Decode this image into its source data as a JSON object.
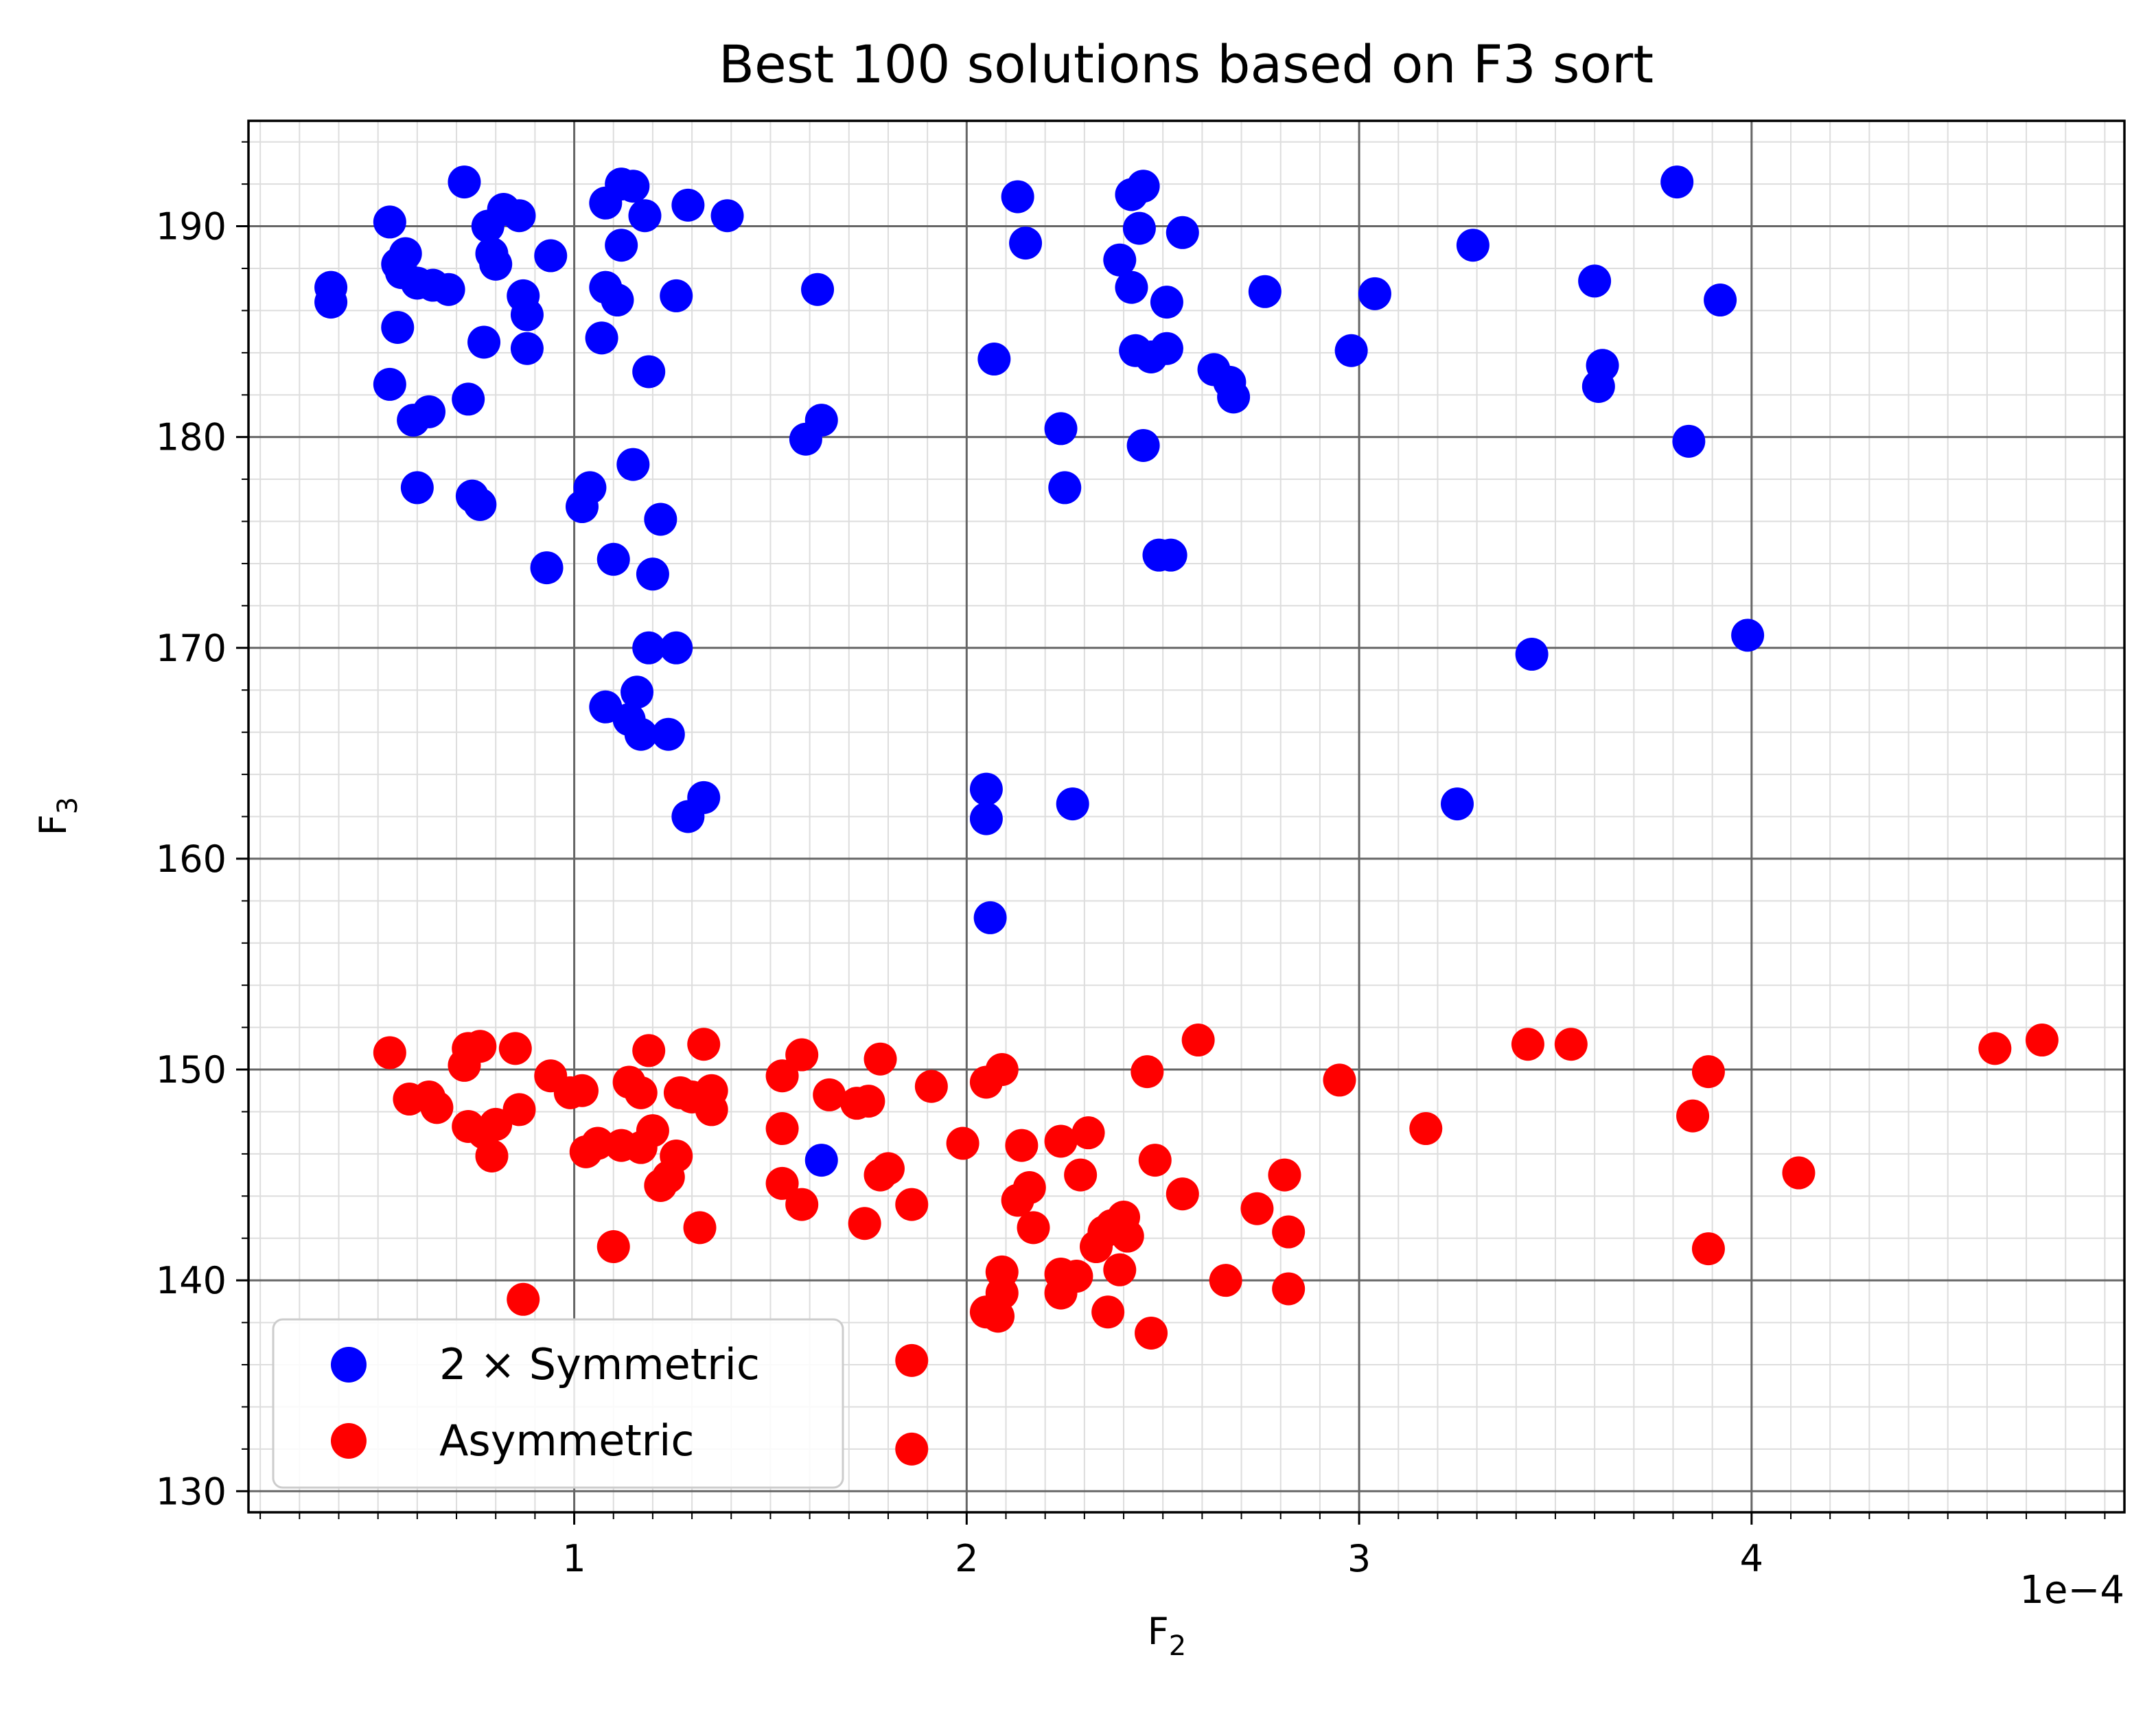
{
  "chart_data": {
    "type": "scatter",
    "title": "Best 100 solutions based on F3 sort",
    "xlabel": "F",
    "xlabel_sub": "2",
    "ylabel": "F",
    "ylabel_sub": "3",
    "x_offset_label": "1e−4",
    "xlim": [
      0.17,
      4.95
    ],
    "ylim": [
      129.0,
      195.0
    ],
    "xticks": [
      1,
      2,
      3,
      4
    ],
    "xtick_labels": [
      "1",
      "2",
      "3",
      "4"
    ],
    "yticks": [
      130,
      140,
      150,
      160,
      170,
      180,
      190
    ],
    "ytick_labels": [
      "130",
      "140",
      "150",
      "160",
      "170",
      "180",
      "190"
    ],
    "grid": true,
    "legend": "lower-left",
    "series": [
      {
        "name": "2 × Symmetric",
        "color": "#0000ff",
        "points": [
          [
            0.38,
            187.1
          ],
          [
            0.38,
            186.4
          ],
          [
            0.53,
            190.2
          ],
          [
            0.55,
            188.2
          ],
          [
            0.57,
            188.7
          ],
          [
            0.56,
            187.8
          ],
          [
            0.55,
            185.2
          ],
          [
            0.53,
            182.5
          ],
          [
            0.6,
            187.3
          ],
          [
            0.64,
            187.2
          ],
          [
            0.68,
            187.0
          ],
          [
            0.59,
            180.8
          ],
          [
            0.63,
            181.2
          ],
          [
            0.6,
            177.6
          ],
          [
            0.72,
            192.1
          ],
          [
            0.73,
            181.8
          ],
          [
            0.78,
            190.0
          ],
          [
            0.79,
            188.7
          ],
          [
            0.8,
            188.2
          ],
          [
            0.82,
            190.8
          ],
          [
            0.86,
            190.5
          ],
          [
            0.87,
            186.7
          ],
          [
            0.88,
            185.8
          ],
          [
            0.88,
            184.2
          ],
          [
            0.77,
            184.5
          ],
          [
            0.74,
            177.2
          ],
          [
            0.76,
            176.8
          ],
          [
            0.94,
            188.6
          ],
          [
            0.93,
            173.8
          ],
          [
            1.04,
            177.6
          ],
          [
            1.02,
            176.7
          ],
          [
            1.08,
            191.1
          ],
          [
            1.12,
            192.0
          ],
          [
            1.15,
            191.9
          ],
          [
            1.18,
            190.5
          ],
          [
            1.12,
            189.1
          ],
          [
            1.08,
            187.1
          ],
          [
            1.11,
            186.5
          ],
          [
            1.07,
            184.7
          ],
          [
            1.19,
            183.1
          ],
          [
            1.15,
            178.7
          ],
          [
            1.22,
            176.1
          ],
          [
            1.2,
            173.5
          ],
          [
            1.1,
            174.2
          ],
          [
            1.19,
            170.0
          ],
          [
            1.26,
            170.0
          ],
          [
            1.08,
            167.2
          ],
          [
            1.16,
            167.9
          ],
          [
            1.14,
            166.6
          ],
          [
            1.17,
            165.9
          ],
          [
            1.24,
            165.9
          ],
          [
            1.29,
            162.0
          ],
          [
            1.33,
            162.9
          ],
          [
            1.29,
            191.0
          ],
          [
            1.39,
            190.5
          ],
          [
            1.26,
            186.7
          ],
          [
            1.62,
            187.0
          ],
          [
            1.63,
            180.8
          ],
          [
            1.59,
            179.9
          ],
          [
            2.05,
            163.3
          ],
          [
            2.05,
            161.9
          ],
          [
            2.06,
            157.2
          ],
          [
            2.13,
            191.4
          ],
          [
            2.15,
            189.2
          ],
          [
            2.07,
            183.7
          ],
          [
            2.24,
            180.4
          ],
          [
            2.25,
            177.6
          ],
          [
            2.27,
            162.6
          ],
          [
            2.42,
            191.5
          ],
          [
            2.45,
            191.9
          ],
          [
            2.44,
            189.9
          ],
          [
            2.39,
            188.4
          ],
          [
            2.42,
            187.1
          ],
          [
            2.43,
            184.1
          ],
          [
            2.47,
            183.8
          ],
          [
            2.51,
            184.2
          ],
          [
            2.55,
            189.7
          ],
          [
            2.51,
            186.4
          ],
          [
            2.45,
            179.6
          ],
          [
            2.49,
            174.4
          ],
          [
            2.52,
            174.4
          ],
          [
            2.63,
            183.2
          ],
          [
            2.67,
            182.6
          ],
          [
            2.68,
            181.9
          ],
          [
            2.76,
            186.9
          ],
          [
            2.98,
            184.1
          ],
          [
            3.04,
            186.8
          ],
          [
            3.29,
            189.1
          ],
          [
            3.25,
            162.6
          ],
          [
            3.44,
            169.7
          ],
          [
            3.6,
            187.4
          ],
          [
            3.61,
            182.4
          ],
          [
            3.62,
            183.4
          ],
          [
            3.81,
            192.1
          ],
          [
            3.84,
            179.8
          ],
          [
            3.92,
            186.5
          ],
          [
            3.99,
            170.6
          ],
          [
            1.63,
            145.7
          ]
        ]
      },
      {
        "name": "Asymmetric",
        "color": "#ff0000",
        "points": [
          [
            0.53,
            150.8
          ],
          [
            0.58,
            148.6
          ],
          [
            0.63,
            148.7
          ],
          [
            0.65,
            148.2
          ],
          [
            0.72,
            150.2
          ],
          [
            0.73,
            151.0
          ],
          [
            0.76,
            151.1
          ],
          [
            0.73,
            147.3
          ],
          [
            0.77,
            147.0
          ],
          [
            0.8,
            147.4
          ],
          [
            0.79,
            145.9
          ],
          [
            0.85,
            151.0
          ],
          [
            0.86,
            148.1
          ],
          [
            0.87,
            139.1
          ],
          [
            0.94,
            149.7
          ],
          [
            0.99,
            148.9
          ],
          [
            1.02,
            149.0
          ],
          [
            1.03,
            146.1
          ],
          [
            1.06,
            146.5
          ],
          [
            1.1,
            141.6
          ],
          [
            1.12,
            146.4
          ],
          [
            1.14,
            149.4
          ],
          [
            1.17,
            148.9
          ],
          [
            1.17,
            146.3
          ],
          [
            1.19,
            150.9
          ],
          [
            1.2,
            147.1
          ],
          [
            1.22,
            144.5
          ],
          [
            1.24,
            144.9
          ],
          [
            1.26,
            145.9
          ],
          [
            1.27,
            148.9
          ],
          [
            1.3,
            148.7
          ],
          [
            1.33,
            151.2
          ],
          [
            1.35,
            149.0
          ],
          [
            1.35,
            148.1
          ],
          [
            1.32,
            142.5
          ],
          [
            1.53,
            149.7
          ],
          [
            1.53,
            147.2
          ],
          [
            1.53,
            144.6
          ],
          [
            1.58,
            150.7
          ],
          [
            1.58,
            143.6
          ],
          [
            1.65,
            148.8
          ],
          [
            1.72,
            148.4
          ],
          [
            1.75,
            148.5
          ],
          [
            1.74,
            142.7
          ],
          [
            1.78,
            150.5
          ],
          [
            1.78,
            145.0
          ],
          [
            1.8,
            145.3
          ],
          [
            1.86,
            143.6
          ],
          [
            1.86,
            136.2
          ],
          [
            1.86,
            132.0
          ],
          [
            1.91,
            149.2
          ],
          [
            1.99,
            146.5
          ],
          [
            2.05,
            149.4
          ],
          [
            2.09,
            150.0
          ],
          [
            2.05,
            138.5
          ],
          [
            2.09,
            140.4
          ],
          [
            2.09,
            139.4
          ],
          [
            2.08,
            138.3
          ],
          [
            2.14,
            146.4
          ],
          [
            2.13,
            143.8
          ],
          [
            2.16,
            144.4
          ],
          [
            2.17,
            142.5
          ],
          [
            2.24,
            146.6
          ],
          [
            2.24,
            140.3
          ],
          [
            2.24,
            139.4
          ],
          [
            2.28,
            140.2
          ],
          [
            2.29,
            145.0
          ],
          [
            2.31,
            147.0
          ],
          [
            2.33,
            141.6
          ],
          [
            2.35,
            142.3
          ],
          [
            2.37,
            142.6
          ],
          [
            2.4,
            143.0
          ],
          [
            2.41,
            142.1
          ],
          [
            2.39,
            140.5
          ],
          [
            2.36,
            138.5
          ],
          [
            2.46,
            149.9
          ],
          [
            2.48,
            145.7
          ],
          [
            2.47,
            137.5
          ],
          [
            2.55,
            144.1
          ],
          [
            2.59,
            151.4
          ],
          [
            2.66,
            140.0
          ],
          [
            2.74,
            143.4
          ],
          [
            2.81,
            145.0
          ],
          [
            2.82,
            142.3
          ],
          [
            2.82,
            139.6
          ],
          [
            2.95,
            149.5
          ],
          [
            3.17,
            147.2
          ],
          [
            3.43,
            151.2
          ],
          [
            3.54,
            151.2
          ],
          [
            3.85,
            147.8
          ],
          [
            3.89,
            149.9
          ],
          [
            3.89,
            141.5
          ],
          [
            4.12,
            145.1
          ],
          [
            4.62,
            151.0
          ],
          [
            4.74,
            151.4
          ]
        ]
      }
    ]
  }
}
